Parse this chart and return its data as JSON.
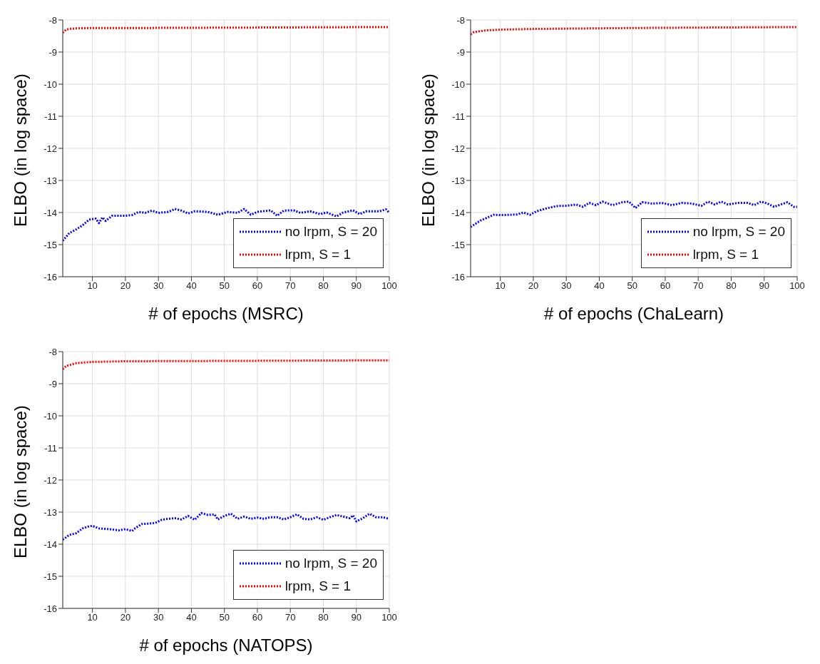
{
  "chart_data": [
    {
      "type": "line",
      "xlabel": "# of epochs (MSRC)",
      "ylabel": "ELBO (in log space)",
      "xlim": [
        1,
        100
      ],
      "xticks": [
        10,
        20,
        30,
        40,
        50,
        60,
        70,
        80,
        90,
        100
      ],
      "ylim": [
        -16,
        -8
      ],
      "yticks": [
        -16,
        -15,
        -14,
        -13,
        -12,
        -11,
        -10,
        -9,
        -8
      ],
      "grid": true,
      "legend": "bottom right",
      "marker": "none",
      "line_style": "dotted",
      "series": [
        {
          "name": "no lrpm, S = 20",
          "color": "#0000ff",
          "x": [
            1,
            3,
            5,
            7,
            9,
            11,
            12,
            13,
            14,
            16,
            20,
            22,
            24,
            26,
            28,
            30,
            33,
            35,
            37,
            39,
            41,
            45,
            48,
            51,
            54,
            56,
            58,
            60,
            64,
            66,
            68,
            71,
            73,
            76,
            79,
            81,
            84,
            86,
            89,
            91,
            93,
            97,
            99,
            100
          ],
          "values": [
            -14.88,
            -14.64,
            -14.53,
            -14.4,
            -14.22,
            -14.19,
            -14.33,
            -14.15,
            -14.26,
            -14.1,
            -14.1,
            -14.08,
            -13.98,
            -14.01,
            -13.94,
            -14.01,
            -13.98,
            -13.89,
            -13.94,
            -14.03,
            -13.96,
            -13.98,
            -14.07,
            -13.98,
            -14.01,
            -13.89,
            -14.07,
            -13.98,
            -13.93,
            -14.1,
            -13.94,
            -13.93,
            -14.01,
            -13.96,
            -14.05,
            -14.0,
            -14.12,
            -14.0,
            -13.93,
            -14.05,
            -13.96,
            -13.96,
            -13.9,
            -14.01
          ]
        },
        {
          "name": "lrpm, S = 1",
          "color": "#ff0000",
          "x": [
            1,
            2,
            3,
            5,
            10,
            20,
            50,
            100
          ],
          "values": [
            -8.4,
            -8.3,
            -8.28,
            -8.26,
            -8.25,
            -8.25,
            -8.24,
            -8.22
          ]
        }
      ]
    },
    {
      "type": "line",
      "xlabel": "# of epochs (ChaLearn)",
      "ylabel": "ELBO (in log space)",
      "xlim": [
        1,
        100
      ],
      "xticks": [
        10,
        20,
        30,
        40,
        50,
        60,
        70,
        80,
        90,
        100
      ],
      "ylim": [
        -16,
        -8
      ],
      "yticks": [
        -16,
        -15,
        -14,
        -13,
        -12,
        -11,
        -10,
        -9,
        -8
      ],
      "grid": true,
      "legend": "bottom right",
      "marker": "none",
      "line_style": "dotted",
      "series": [
        {
          "name": "no lrpm, S = 20",
          "color": "#0000ff",
          "x": [
            1,
            4,
            8,
            10,
            13,
            15,
            17,
            19,
            21,
            24,
            27,
            30,
            33,
            35,
            37,
            39,
            41,
            44,
            47,
            49,
            51,
            53,
            56,
            59,
            62,
            65,
            68,
            71,
            73,
            75,
            77,
            79,
            82,
            85,
            87,
            89,
            91,
            93,
            95,
            97,
            99,
            100
          ],
          "values": [
            -14.45,
            -14.25,
            -14.07,
            -14.08,
            -14.07,
            -14.06,
            -14.0,
            -14.07,
            -13.96,
            -13.87,
            -13.8,
            -13.79,
            -13.75,
            -13.82,
            -13.7,
            -13.77,
            -13.66,
            -13.77,
            -13.68,
            -13.66,
            -13.86,
            -13.68,
            -13.72,
            -13.7,
            -13.77,
            -13.7,
            -13.72,
            -13.79,
            -13.66,
            -13.75,
            -13.66,
            -13.75,
            -13.7,
            -13.7,
            -13.77,
            -13.66,
            -13.72,
            -13.82,
            -13.75,
            -13.68,
            -13.82,
            -13.82
          ]
        },
        {
          "name": "lrpm, S = 1",
          "color": "#ff0000",
          "x": [
            1,
            2,
            5,
            10,
            20,
            50,
            100
          ],
          "values": [
            -8.45,
            -8.38,
            -8.33,
            -8.3,
            -8.28,
            -8.25,
            -8.22
          ]
        }
      ]
    },
    {
      "type": "line",
      "xlabel": "# of epochs (NATOPS)",
      "ylabel": "ELBO (in log space)",
      "xlim": [
        1,
        100
      ],
      "xticks": [
        10,
        20,
        30,
        40,
        50,
        60,
        70,
        80,
        90,
        100
      ],
      "ylim": [
        -16,
        -8
      ],
      "yticks": [
        -16,
        -15,
        -14,
        -13,
        -12,
        -11,
        -10,
        -9,
        -8
      ],
      "grid": true,
      "legend": "bottom right",
      "marker": "none",
      "line_style": "dotted",
      "series": [
        {
          "name": "no lrpm, S = 20",
          "color": "#0000ff",
          "x": [
            1,
            3,
            5,
            7,
            9,
            10,
            12,
            15,
            18,
            20,
            22,
            23,
            25,
            27,
            29,
            31,
            33,
            35,
            37,
            39,
            41,
            43,
            45,
            47,
            48,
            50,
            52,
            54,
            56,
            58,
            60,
            62,
            64,
            66,
            68,
            70,
            72,
            74,
            76,
            78,
            80,
            82,
            84,
            86,
            88,
            89,
            90,
            92,
            94,
            96,
            98,
            100
          ],
          "values": [
            -13.86,
            -13.71,
            -13.66,
            -13.51,
            -13.44,
            -13.43,
            -13.51,
            -13.53,
            -13.57,
            -13.53,
            -13.59,
            -13.5,
            -13.37,
            -13.36,
            -13.34,
            -13.24,
            -13.21,
            -13.19,
            -13.23,
            -13.12,
            -13.24,
            -13.03,
            -13.09,
            -13.07,
            -13.23,
            -13.12,
            -13.05,
            -13.21,
            -13.14,
            -13.21,
            -13.17,
            -13.21,
            -13.16,
            -13.16,
            -13.23,
            -13.16,
            -13.07,
            -13.21,
            -13.23,
            -13.16,
            -13.24,
            -13.16,
            -13.09,
            -13.14,
            -13.19,
            -13.1,
            -13.29,
            -13.19,
            -13.05,
            -13.16,
            -13.16,
            -13.21
          ]
        },
        {
          "name": "lrpm, S = 1",
          "color": "#ff0000",
          "x": [
            1,
            2,
            5,
            10,
            20,
            50,
            100
          ],
          "values": [
            -8.55,
            -8.45,
            -8.36,
            -8.32,
            -8.3,
            -8.29,
            -8.27
          ]
        }
      ]
    }
  ]
}
